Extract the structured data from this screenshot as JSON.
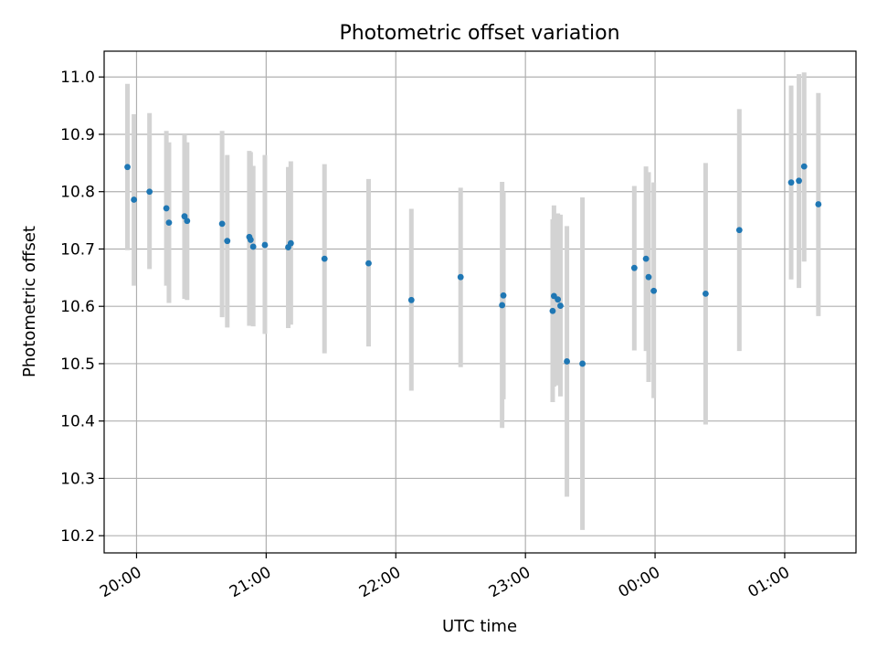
{
  "chart_data": {
    "type": "scatter",
    "title": "Photometric offset variation",
    "xlabel": "UTC time",
    "ylabel": "Photometric offset",
    "x_unit": "hours since midnight of the first night (values >= 24 are after midnight)",
    "xlim": [
      19.75,
      25.55
    ],
    "ylim": [
      10.17,
      11.045
    ],
    "grid": true,
    "x_ticks": [
      {
        "value": 20,
        "label": "20:00"
      },
      {
        "value": 21,
        "label": "21:00"
      },
      {
        "value": 22,
        "label": "22:00"
      },
      {
        "value": 23,
        "label": "23:00"
      },
      {
        "value": 24,
        "label": "00:00"
      },
      {
        "value": 25,
        "label": "01:00"
      }
    ],
    "y_ticks": [
      {
        "value": 10.2,
        "label": "10.2"
      },
      {
        "value": 10.3,
        "label": "10.3"
      },
      {
        "value": 10.4,
        "label": "10.4"
      },
      {
        "value": 10.5,
        "label": "10.5"
      },
      {
        "value": 10.6,
        "label": "10.6"
      },
      {
        "value": 10.7,
        "label": "10.7"
      },
      {
        "value": 10.8,
        "label": "10.8"
      },
      {
        "value": 10.9,
        "label": "10.9"
      },
      {
        "value": 11.0,
        "label": "11.0"
      }
    ],
    "colors": {
      "point": "#1f77b4",
      "errorbar": "#d3d3d3",
      "grid": "#b0b0b0"
    },
    "points": [
      {
        "x": 19.93,
        "y": 10.843,
        "lo": 10.698,
        "hi": 10.988
      },
      {
        "x": 19.98,
        "y": 10.786,
        "lo": 10.636,
        "hi": 10.935
      },
      {
        "x": 20.1,
        "y": 10.8,
        "lo": 10.665,
        "hi": 10.937
      },
      {
        "x": 20.23,
        "y": 10.771,
        "lo": 10.636,
        "hi": 10.906
      },
      {
        "x": 20.25,
        "y": 10.746,
        "lo": 10.606,
        "hi": 10.886
      },
      {
        "x": 20.37,
        "y": 10.757,
        "lo": 10.613,
        "hi": 10.9
      },
      {
        "x": 20.39,
        "y": 10.749,
        "lo": 10.611,
        "hi": 10.886
      },
      {
        "x": 20.66,
        "y": 10.744,
        "lo": 10.581,
        "hi": 10.906
      },
      {
        "x": 20.7,
        "y": 10.714,
        "lo": 10.563,
        "hi": 10.864
      },
      {
        "x": 20.87,
        "y": 10.721,
        "lo": 10.566,
        "hi": 10.871
      },
      {
        "x": 20.88,
        "y": 10.716,
        "lo": 10.566,
        "hi": 10.869
      },
      {
        "x": 20.9,
        "y": 10.704,
        "lo": 10.565,
        "hi": 10.845
      },
      {
        "x": 20.99,
        "y": 10.707,
        "lo": 10.552,
        "hi": 10.864
      },
      {
        "x": 21.17,
        "y": 10.703,
        "lo": 10.562,
        "hi": 10.843
      },
      {
        "x": 21.19,
        "y": 10.71,
        "lo": 10.568,
        "hi": 10.853
      },
      {
        "x": 21.45,
        "y": 10.683,
        "lo": 10.518,
        "hi": 10.848
      },
      {
        "x": 21.79,
        "y": 10.675,
        "lo": 10.53,
        "hi": 10.822
      },
      {
        "x": 22.12,
        "y": 10.611,
        "lo": 10.453,
        "hi": 10.77
      },
      {
        "x": 22.5,
        "y": 10.651,
        "lo": 10.494,
        "hi": 10.807
      },
      {
        "x": 22.82,
        "y": 10.602,
        "lo": 10.388,
        "hi": 10.817
      },
      {
        "x": 22.83,
        "y": 10.619,
        "lo": 10.438,
        "hi": 10.8
      },
      {
        "x": 23.21,
        "y": 10.592,
        "lo": 10.433,
        "hi": 10.752
      },
      {
        "x": 23.22,
        "y": 10.618,
        "lo": 10.46,
        "hi": 10.776
      },
      {
        "x": 23.25,
        "y": 10.612,
        "lo": 10.462,
        "hi": 10.762
      },
      {
        "x": 23.27,
        "y": 10.601,
        "lo": 10.443,
        "hi": 10.76
      },
      {
        "x": 23.32,
        "y": 10.504,
        "lo": 10.268,
        "hi": 10.74
      },
      {
        "x": 23.44,
        "y": 10.5,
        "lo": 10.21,
        "hi": 10.79
      },
      {
        "x": 23.84,
        "y": 10.667,
        "lo": 10.523,
        "hi": 10.81
      },
      {
        "x": 23.93,
        "y": 10.683,
        "lo": 10.522,
        "hi": 10.844
      },
      {
        "x": 23.95,
        "y": 10.651,
        "lo": 10.468,
        "hi": 10.834
      },
      {
        "x": 23.99,
        "y": 10.627,
        "lo": 10.44,
        "hi": 10.816
      },
      {
        "x": 24.39,
        "y": 10.622,
        "lo": 10.394,
        "hi": 10.85
      },
      {
        "x": 24.65,
        "y": 10.733,
        "lo": 10.522,
        "hi": 10.944
      },
      {
        "x": 25.05,
        "y": 10.816,
        "lo": 10.647,
        "hi": 10.985
      },
      {
        "x": 25.11,
        "y": 10.819,
        "lo": 10.632,
        "hi": 11.005
      },
      {
        "x": 25.15,
        "y": 10.844,
        "lo": 10.678,
        "hi": 11.008
      },
      {
        "x": 25.26,
        "y": 10.778,
        "lo": 10.583,
        "hi": 10.972
      }
    ]
  }
}
